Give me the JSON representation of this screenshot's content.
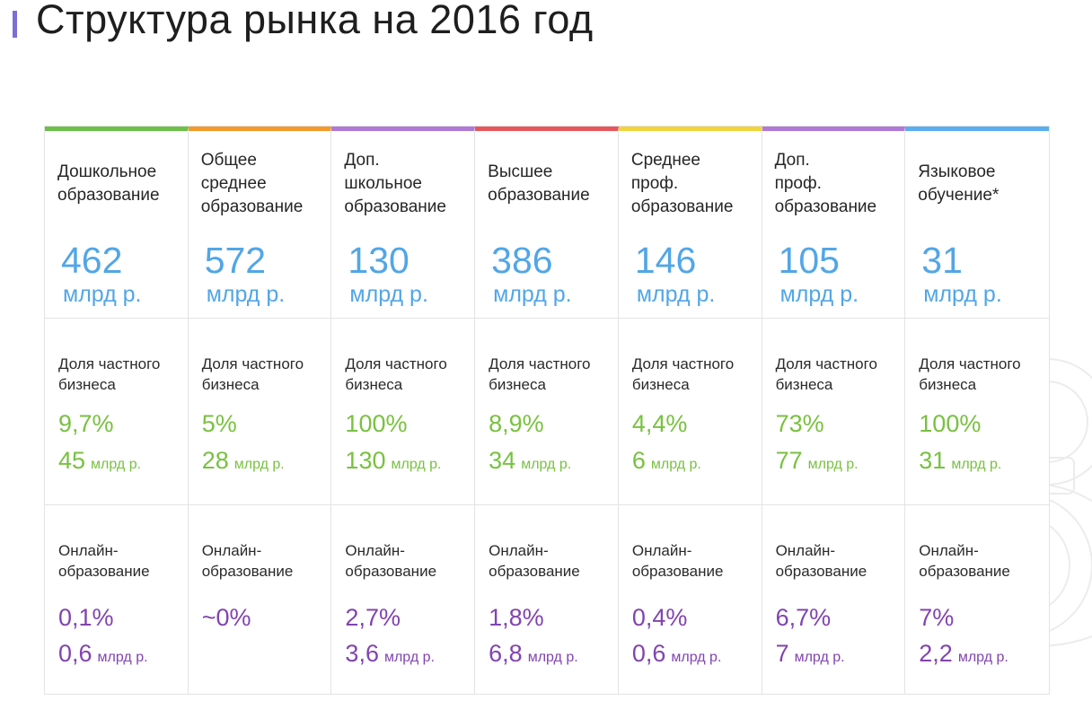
{
  "page": {
    "title": "Структура рынка на 2016 год",
    "accent": "#7b6fd6"
  },
  "labels": {
    "private_share": "Доля частного\nбизнеса",
    "online": "Онлайн-\nобразование"
  },
  "segments": [
    {
      "name": "Дошкольное\nобразование",
      "color": "#6cc04a",
      "market_value": "462",
      "market_unit": "млрд р.",
      "private_pct": "9,7%",
      "private_amount": "45",
      "private_unit": "млрд р.",
      "online_pct": "0,1%",
      "online_amount": "0,6",
      "online_unit": "млрд р."
    },
    {
      "name": "Общее\nсреднее\nобразование",
      "color": "#f39a2b",
      "market_value": "572",
      "market_unit": "млрд р.",
      "private_pct": "5%",
      "private_amount": "28",
      "private_unit": "млрд р.",
      "online_pct": "~0%",
      "online_amount": "",
      "online_unit": ""
    },
    {
      "name": "Доп.\nшкольное\nобразование",
      "color": "#b07ad8",
      "market_value": "130",
      "market_unit": "млрд р.",
      "private_pct": "100%",
      "private_amount": "130",
      "private_unit": "млрд р.",
      "online_pct": "2,7%",
      "online_amount": "3,6",
      "online_unit": "млрд р."
    },
    {
      "name": "Высшее\nобразование",
      "color": "#e8565c",
      "market_value": "386",
      "market_unit": "млрд р.",
      "private_pct": "8,9%",
      "private_amount": "34",
      "private_unit": "млрд р.",
      "online_pct": "1,8%",
      "online_amount": "6,8",
      "online_unit": "млрд р."
    },
    {
      "name": "Среднее\nпроф.\nобразование",
      "color": "#f2d43a",
      "market_value": "146",
      "market_unit": "млрд р.",
      "private_pct": "4,4%",
      "private_amount": "6",
      "private_unit": "млрд р.",
      "online_pct": "0,4%",
      "online_amount": "0,6",
      "online_unit": "млрд р."
    },
    {
      "name": "Доп.\nпроф.\nобразование",
      "color": "#b07ad8",
      "market_value": "105",
      "market_unit": "млрд р.",
      "private_pct": "73%",
      "private_amount": "77",
      "private_unit": "млрд р.",
      "online_pct": "6,7%",
      "online_amount": "7",
      "online_unit": "млрд р."
    },
    {
      "name": "Языковое\nобучение*",
      "color": "#5aaef0",
      "market_value": "31",
      "market_unit": "млрд р.",
      "private_pct": "100%",
      "private_amount": "31",
      "private_unit": "млрд р.",
      "online_pct": "7%",
      "online_amount": "2,2",
      "online_unit": "млрд р."
    }
  ]
}
